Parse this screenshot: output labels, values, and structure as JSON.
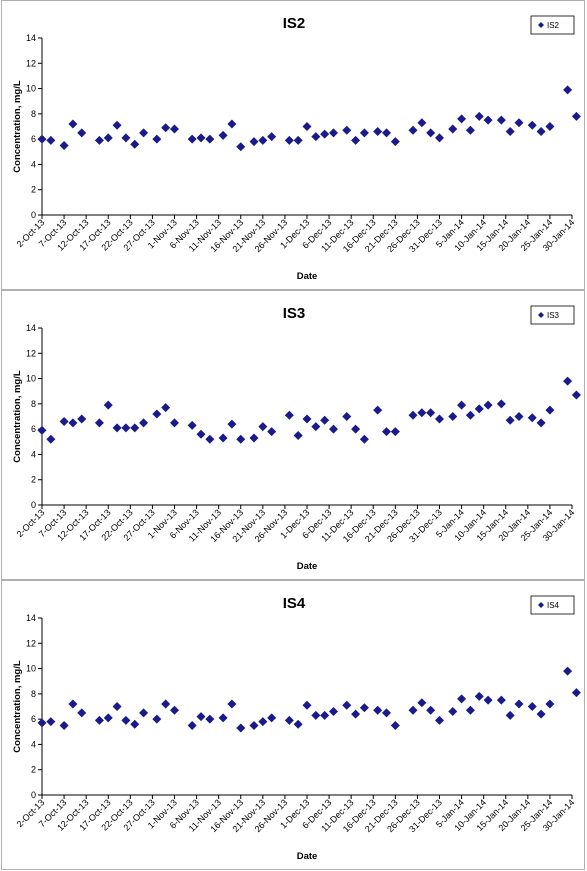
{
  "colors": {
    "marker": "#1a1a8c",
    "axis": "#000000",
    "panel_border": "#b0b0b0"
  },
  "x_tick_labels": [
    "2-Oct-13",
    "7-Oct-13",
    "12-Oct-13",
    "17-Oct-13",
    "22-Oct-13",
    "27-Oct-13",
    "1-Nov-13",
    "6-Nov-13",
    "11-Nov-13",
    "16-Nov-13",
    "21-Nov-13",
    "26-Nov-13",
    "1-Dec-13",
    "6-Dec-13",
    "11-Dec-13",
    "16-Dec-13",
    "21-Dec-13",
    "26-Dec-13",
    "31-Dec-13",
    "5-Jan-14",
    "10-Jan-14",
    "15-Jan-14",
    "20-Jan-14",
    "25-Jan-14",
    "30-Jan-14"
  ],
  "y_tick_labels": [
    "0",
    "2",
    "4",
    "6",
    "8",
    "10",
    "12",
    "14"
  ],
  "chart_data": [
    {
      "type": "scatter",
      "title": "IS2",
      "xlabel": "Date",
      "ylabel": "Concentration, mg/L",
      "xlim": [
        "2-Oct-13",
        "30-Jan-14"
      ],
      "ylim": [
        0,
        14
      ],
      "grid": false,
      "legend": "top-right",
      "series": [
        {
          "name": "IS2",
          "points": [
            [
              "2-Oct-13",
              6.0
            ],
            [
              "4-Oct-13",
              5.9
            ],
            [
              "7-Oct-13",
              5.5
            ],
            [
              "9-Oct-13",
              7.2
            ],
            [
              "11-Oct-13",
              6.5
            ],
            [
              "15-Oct-13",
              5.9
            ],
            [
              "17-Oct-13",
              6.1
            ],
            [
              "19-Oct-13",
              7.1
            ],
            [
              "21-Oct-13",
              6.1
            ],
            [
              "23-Oct-13",
              5.6
            ],
            [
              "25-Oct-13",
              6.5
            ],
            [
              "28-Oct-13",
              6.0
            ],
            [
              "30-Oct-13",
              6.9
            ],
            [
              "1-Nov-13",
              6.8
            ],
            [
              "5-Nov-13",
              6.0
            ],
            [
              "7-Nov-13",
              6.1
            ],
            [
              "9-Nov-13",
              6.0
            ],
            [
              "12-Nov-13",
              6.3
            ],
            [
              "14-Nov-13",
              7.2
            ],
            [
              "16-Nov-13",
              5.4
            ],
            [
              "19-Nov-13",
              5.8
            ],
            [
              "21-Nov-13",
              5.9
            ],
            [
              "23-Nov-13",
              6.2
            ],
            [
              "27-Nov-13",
              5.9
            ],
            [
              "29-Nov-13",
              5.9
            ],
            [
              "1-Dec-13",
              7.0
            ],
            [
              "3-Dec-13",
              6.2
            ],
            [
              "5-Dec-13",
              6.4
            ],
            [
              "7-Dec-13",
              6.5
            ],
            [
              "10-Dec-13",
              6.7
            ],
            [
              "12-Dec-13",
              5.9
            ],
            [
              "14-Dec-13",
              6.5
            ],
            [
              "17-Dec-13",
              6.6
            ],
            [
              "19-Dec-13",
              6.5
            ],
            [
              "21-Dec-13",
              5.8
            ],
            [
              "25-Dec-13",
              6.7
            ],
            [
              "27-Dec-13",
              7.3
            ],
            [
              "29-Dec-13",
              6.5
            ],
            [
              "31-Dec-13",
              6.1
            ],
            [
              "3-Jan-14",
              6.8
            ],
            [
              "5-Jan-14",
              7.6
            ],
            [
              "7-Jan-14",
              6.7
            ],
            [
              "9-Jan-14",
              7.8
            ],
            [
              "11-Jan-14",
              7.5
            ],
            [
              "14-Jan-14",
              7.5
            ],
            [
              "16-Jan-14",
              6.6
            ],
            [
              "18-Jan-14",
              7.3
            ],
            [
              "21-Jan-14",
              7.1
            ],
            [
              "23-Jan-14",
              6.6
            ],
            [
              "25-Jan-14",
              7.0
            ],
            [
              "29-Jan-14",
              9.9
            ],
            [
              "31-Jan-14",
              7.8
            ]
          ]
        }
      ]
    },
    {
      "type": "scatter",
      "title": "IS3",
      "xlabel": "Date",
      "ylabel": "Concentration, mg/L",
      "xlim": [
        "2-Oct-13",
        "30-Jan-14"
      ],
      "ylim": [
        0,
        14
      ],
      "grid": false,
      "legend": "top-right",
      "series": [
        {
          "name": "IS3",
          "points": [
            [
              "2-Oct-13",
              5.9
            ],
            [
              "4-Oct-13",
              5.2
            ],
            [
              "7-Oct-13",
              6.6
            ],
            [
              "9-Oct-13",
              6.5
            ],
            [
              "11-Oct-13",
              6.8
            ],
            [
              "15-Oct-13",
              6.5
            ],
            [
              "17-Oct-13",
              7.9
            ],
            [
              "19-Oct-13",
              6.1
            ],
            [
              "21-Oct-13",
              6.1
            ],
            [
              "23-Oct-13",
              6.1
            ],
            [
              "25-Oct-13",
              6.5
            ],
            [
              "28-Oct-13",
              7.2
            ],
            [
              "30-Oct-13",
              7.7
            ],
            [
              "1-Nov-13",
              6.5
            ],
            [
              "5-Nov-13",
              6.3
            ],
            [
              "7-Nov-13",
              5.6
            ],
            [
              "9-Nov-13",
              5.2
            ],
            [
              "12-Nov-13",
              5.3
            ],
            [
              "14-Nov-13",
              6.4
            ],
            [
              "16-Nov-13",
              5.2
            ],
            [
              "19-Nov-13",
              5.3
            ],
            [
              "21-Nov-13",
              6.2
            ],
            [
              "23-Nov-13",
              5.8
            ],
            [
              "27-Nov-13",
              7.1
            ],
            [
              "29-Nov-13",
              5.5
            ],
            [
              "1-Dec-13",
              6.8
            ],
            [
              "3-Dec-13",
              6.2
            ],
            [
              "5-Dec-13",
              6.7
            ],
            [
              "7-Dec-13",
              6.0
            ],
            [
              "10-Dec-13",
              7.0
            ],
            [
              "12-Dec-13",
              6.0
            ],
            [
              "14-Dec-13",
              5.2
            ],
            [
              "17-Dec-13",
              7.5
            ],
            [
              "19-Dec-13",
              5.8
            ],
            [
              "21-Dec-13",
              5.8
            ],
            [
              "25-Dec-13",
              7.1
            ],
            [
              "27-Dec-13",
              7.3
            ],
            [
              "29-Dec-13",
              7.3
            ],
            [
              "31-Dec-13",
              6.8
            ],
            [
              "3-Jan-14",
              7.0
            ],
            [
              "5-Jan-14",
              7.9
            ],
            [
              "7-Jan-14",
              7.1
            ],
            [
              "9-Jan-14",
              7.6
            ],
            [
              "11-Jan-14",
              7.9
            ],
            [
              "14-Jan-14",
              8.0
            ],
            [
              "16-Jan-14",
              6.7
            ],
            [
              "18-Jan-14",
              7.0
            ],
            [
              "21-Jan-14",
              6.9
            ],
            [
              "23-Jan-14",
              6.5
            ],
            [
              "25-Jan-14",
              7.5
            ],
            [
              "29-Jan-14",
              9.8
            ],
            [
              "31-Jan-14",
              8.7
            ]
          ]
        }
      ]
    },
    {
      "type": "scatter",
      "title": "IS4",
      "xlabel": "Date",
      "ylabel": "Concentration, mg/L",
      "xlim": [
        "2-Oct-13",
        "30-Jan-14"
      ],
      "ylim": [
        0,
        14
      ],
      "grid": false,
      "legend": "top-right",
      "series": [
        {
          "name": "IS4",
          "points": [
            [
              "2-Oct-13",
              5.7
            ],
            [
              "4-Oct-13",
              5.8
            ],
            [
              "7-Oct-13",
              5.5
            ],
            [
              "9-Oct-13",
              7.2
            ],
            [
              "11-Oct-13",
              6.5
            ],
            [
              "15-Oct-13",
              5.9
            ],
            [
              "17-Oct-13",
              6.1
            ],
            [
              "19-Oct-13",
              7.0
            ],
            [
              "21-Oct-13",
              5.9
            ],
            [
              "23-Oct-13",
              5.6
            ],
            [
              "25-Oct-13",
              6.5
            ],
            [
              "28-Oct-13",
              6.0
            ],
            [
              "30-Oct-13",
              7.2
            ],
            [
              "1-Nov-13",
              6.7
            ],
            [
              "5-Nov-13",
              5.5
            ],
            [
              "7-Nov-13",
              6.2
            ],
            [
              "9-Nov-13",
              6.0
            ],
            [
              "12-Nov-13",
              6.1
            ],
            [
              "14-Nov-13",
              7.2
            ],
            [
              "16-Nov-13",
              5.3
            ],
            [
              "19-Nov-13",
              5.5
            ],
            [
              "21-Nov-13",
              5.8
            ],
            [
              "23-Nov-13",
              6.1
            ],
            [
              "27-Nov-13",
              5.9
            ],
            [
              "29-Nov-13",
              5.6
            ],
            [
              "1-Dec-13",
              7.1
            ],
            [
              "3-Dec-13",
              6.3
            ],
            [
              "5-Dec-13",
              6.3
            ],
            [
              "7-Dec-13",
              6.6
            ],
            [
              "10-Dec-13",
              7.1
            ],
            [
              "12-Dec-13",
              6.4
            ],
            [
              "14-Dec-13",
              6.9
            ],
            [
              "17-Dec-13",
              6.7
            ],
            [
              "19-Dec-13",
              6.5
            ],
            [
              "21-Dec-13",
              5.5
            ],
            [
              "25-Dec-13",
              6.7
            ],
            [
              "27-Dec-13",
              7.3
            ],
            [
              "29-Dec-13",
              6.7
            ],
            [
              "31-Dec-13",
              5.9
            ],
            [
              "3-Jan-14",
              6.6
            ],
            [
              "5-Jan-14",
              7.6
            ],
            [
              "7-Jan-14",
              6.7
            ],
            [
              "9-Jan-14",
              7.8
            ],
            [
              "11-Jan-14",
              7.5
            ],
            [
              "14-Jan-14",
              7.5
            ],
            [
              "16-Jan-14",
              6.3
            ],
            [
              "18-Jan-14",
              7.2
            ],
            [
              "21-Jan-14",
              7.0
            ],
            [
              "23-Jan-14",
              6.4
            ],
            [
              "25-Jan-14",
              7.2
            ],
            [
              "29-Jan-14",
              9.8
            ],
            [
              "31-Jan-14",
              8.1
            ]
          ]
        }
      ]
    }
  ]
}
